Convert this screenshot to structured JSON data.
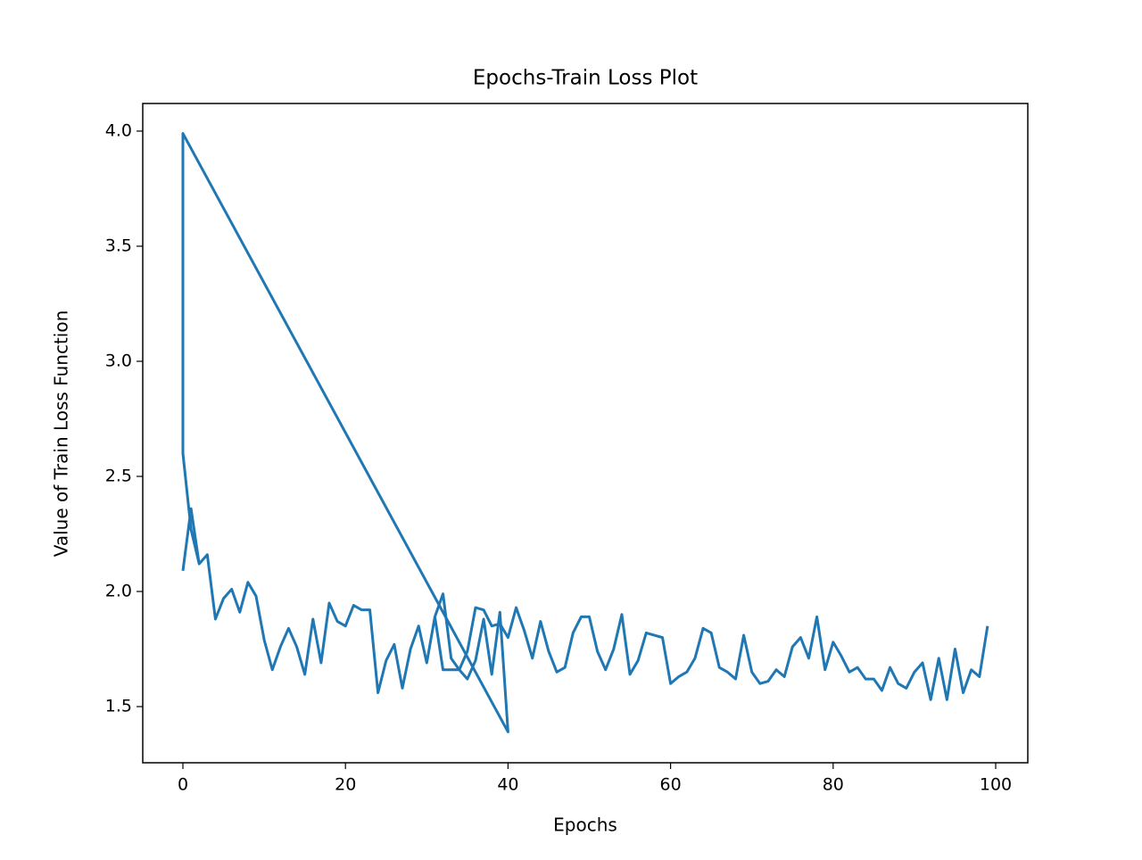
{
  "chart_data": {
    "type": "line",
    "title": "Epochs-Train Loss Plot",
    "x_label": "Epochs",
    "y_label": "Value of Train Loss Function",
    "series": [
      {
        "color": "#1f77b4",
        "x": [
          0,
          1,
          2,
          3,
          4,
          5,
          6,
          7,
          8,
          9,
          10,
          11,
          12,
          13,
          14,
          15,
          16,
          17,
          18,
          19,
          20,
          21,
          22,
          23,
          24,
          25,
          26,
          27,
          28,
          29,
          30,
          31,
          32,
          33,
          34,
          35,
          36,
          37,
          38,
          39,
          40,
          0,
          0,
          1,
          2,
          3,
          4,
          5,
          6,
          7,
          8,
          9,
          10,
          11,
          12,
          13,
          14,
          15,
          16,
          17,
          18,
          19,
          20,
          21,
          22,
          23,
          24,
          25,
          26,
          27,
          28,
          29,
          30,
          31,
          32,
          33,
          34,
          35,
          36,
          37,
          38,
          39,
          40,
          41,
          42,
          43,
          44,
          45,
          46,
          47,
          48,
          49,
          50,
          51,
          52,
          53,
          54,
          55,
          56,
          57,
          58,
          59,
          60,
          61,
          62,
          63,
          64,
          65,
          66,
          67,
          68,
          69,
          70,
          71,
          72,
          73,
          74,
          75,
          76,
          77,
          78,
          79,
          80,
          81,
          82,
          83,
          84,
          85,
          86,
          87,
          88,
          89,
          90,
          91,
          92,
          93,
          94,
          95,
          96,
          97,
          98,
          99
        ],
        "values": [
          2.09,
          2.36,
          2.12,
          2.16,
          1.88,
          1.97,
          2.01,
          1.91,
          2.04,
          1.98,
          1.79,
          1.66,
          1.76,
          1.84,
          1.76,
          1.64,
          1.88,
          1.69,
          1.95,
          1.87,
          1.85,
          1.94,
          1.92,
          1.92,
          1.56,
          1.7,
          1.77,
          1.58,
          1.75,
          1.85,
          1.69,
          1.89,
          1.99,
          1.71,
          1.66,
          1.62,
          1.7,
          1.88,
          1.64,
          1.91,
          1.39,
          3.99,
          2.6,
          2.27,
          2.12,
          2.16,
          1.88,
          1.97,
          2.01,
          1.91,
          2.04,
          1.98,
          1.79,
          1.66,
          1.76,
          1.84,
          1.76,
          1.64,
          1.88,
          1.69,
          1.95,
          1.87,
          1.85,
          1.94,
          1.92,
          1.92,
          1.56,
          1.7,
          1.77,
          1.58,
          1.75,
          1.85,
          1.69,
          1.89,
          1.66,
          1.66,
          1.66,
          1.74,
          1.93,
          1.92,
          1.85,
          1.86,
          1.8,
          1.93,
          1.83,
          1.71,
          1.87,
          1.74,
          1.65,
          1.67,
          1.82,
          1.89,
          1.89,
          1.74,
          1.66,
          1.75,
          1.9,
          1.64,
          1.7,
          1.82,
          1.81,
          1.8,
          1.6,
          1.63,
          1.65,
          1.71,
          1.84,
          1.82,
          1.67,
          1.65,
          1.62,
          1.81,
          1.65,
          1.6,
          1.61,
          1.66,
          1.63,
          1.76,
          1.8,
          1.71,
          1.89,
          1.66,
          1.78,
          1.72,
          1.65,
          1.67,
          1.62,
          1.62,
          1.57,
          1.67,
          1.6,
          1.58,
          1.65,
          1.69,
          1.53,
          1.71,
          1.53,
          1.75,
          1.56,
          1.66,
          1.63,
          1.85
        ]
      }
    ],
    "xlim": [
      -4.94,
      103.95
    ],
    "xticks": [
      0,
      20,
      40,
      60,
      80,
      100
    ],
    "ylim": [
      1.256,
      4.12
    ],
    "yticks": [
      1.5,
      {
        "value": 2,
        "label": "2.0"
      },
      2.5,
      {
        "value": 3,
        "label": "3.0"
      },
      3.5,
      {
        "value": 4,
        "label": "4.0"
      }
    ]
  }
}
